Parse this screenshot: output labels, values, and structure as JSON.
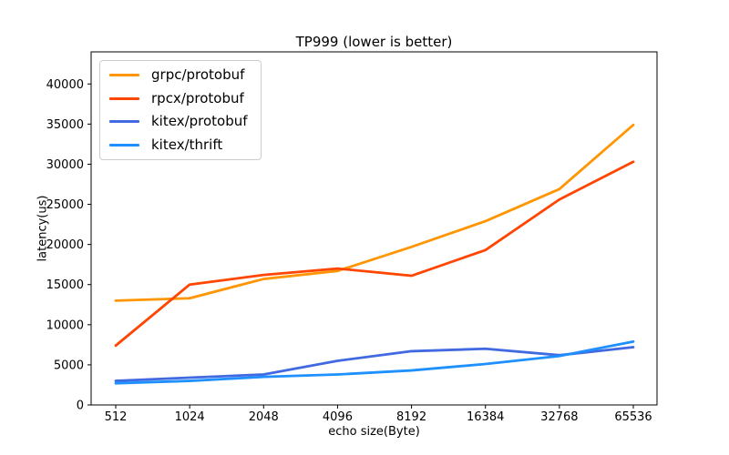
{
  "chart_data": {
    "type": "line",
    "title": "TP999 (lower is better)",
    "xlabel": "echo size(Byte)",
    "ylabel": "latency(us)",
    "categories": [
      "512",
      "1024",
      "2048",
      "4096",
      "8192",
      "16384",
      "32768",
      "65536"
    ],
    "yticks": [
      0,
      5000,
      10000,
      15000,
      20000,
      25000,
      30000,
      35000,
      40000
    ],
    "ylim": [
      0,
      44000
    ],
    "grid": false,
    "legend_position": "upper-left",
    "series": [
      {
        "name": "grpc/protobuf",
        "color": "#FF9500",
        "values": [
          13000,
          13300,
          15700,
          16700,
          19700,
          22900,
          26900,
          34900
        ]
      },
      {
        "name": "rpcx/protobuf",
        "color": "#FF4500",
        "values": [
          7400,
          15000,
          16200,
          17000,
          16100,
          19300,
          25600,
          30300
        ]
      },
      {
        "name": "kitex/protobuf",
        "color": "#4169E1",
        "values": [
          3000,
          3400,
          3800,
          5500,
          6700,
          7000,
          6200,
          7200
        ]
      },
      {
        "name": "kitex/thrift",
        "color": "#1E90FF",
        "values": [
          2700,
          3000,
          3500,
          3800,
          4300,
          5100,
          6100,
          7900
        ]
      }
    ]
  }
}
